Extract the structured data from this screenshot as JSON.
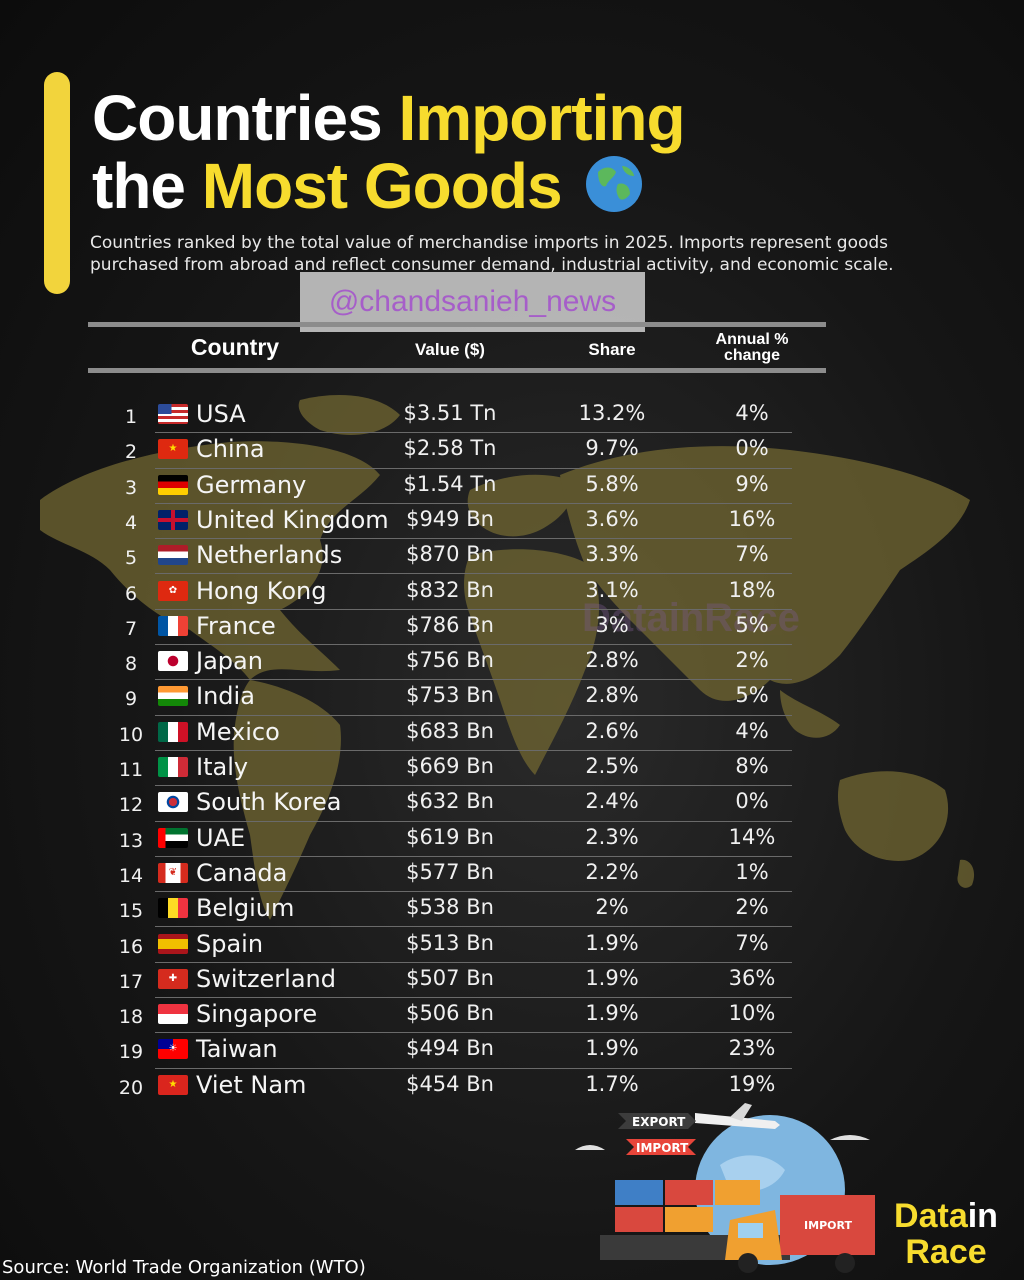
{
  "header": {
    "title_line1_a": "Countries",
    "title_line1_b": "Importing",
    "title_line2_a": "the",
    "title_line2_b": "Most Goods",
    "subtitle": "Countries ranked by the total value of merchandise imports in 2025.  Imports represent goods purchased from abroad and reflect consumer demand, industrial activity, and economic scale.",
    "globe_icon": "globe-icon"
  },
  "watermark": "@chandsanieh_news",
  "map_watermark": "DatainRace",
  "colors": {
    "accent": "#f2d43c",
    "title_yellow": "#f7dc2e",
    "map": "#6e6431",
    "background": "#161616"
  },
  "chart_data": {
    "type": "table",
    "columns": [
      "Country",
      "Value ($)",
      "Share",
      "Annual % change"
    ],
    "rows": [
      {
        "rank": "1",
        "flag": "us",
        "country": "USA",
        "value": "$3.51 Tn",
        "share": "13.2%",
        "change": "4%"
      },
      {
        "rank": "2",
        "flag": "cn",
        "country": "China",
        "value": "$2.58 Tn",
        "share": "9.7%",
        "change": "0%"
      },
      {
        "rank": "3",
        "flag": "de",
        "country": "Germany",
        "value": "$1.54 Tn",
        "share": "5.8%",
        "change": "9%"
      },
      {
        "rank": "4",
        "flag": "gb",
        "country": "United Kingdom",
        "value": "$949 Bn",
        "share": "3.6%",
        "change": "16%"
      },
      {
        "rank": "5",
        "flag": "nl",
        "country": "Netherlands",
        "value": "$870 Bn",
        "share": "3.3%",
        "change": "7%"
      },
      {
        "rank": "6",
        "flag": "hk",
        "country": "Hong Kong",
        "value": "$832 Bn",
        "share": "3.1%",
        "change": "18%"
      },
      {
        "rank": "7",
        "flag": "fr",
        "country": "France",
        "value": "$786 Bn",
        "share": "3%",
        "change": "5%"
      },
      {
        "rank": "8",
        "flag": "jp",
        "country": "Japan",
        "value": "$756 Bn",
        "share": "2.8%",
        "change": "2%"
      },
      {
        "rank": "9",
        "flag": "in",
        "country": "India",
        "value": "$753 Bn",
        "share": "2.8%",
        "change": "5%"
      },
      {
        "rank": "10",
        "flag": "mx",
        "country": "Mexico",
        "value": "$683 Bn",
        "share": "2.6%",
        "change": "4%"
      },
      {
        "rank": "11",
        "flag": "it",
        "country": "Italy",
        "value": "$669 Bn",
        "share": "2.5%",
        "change": "8%"
      },
      {
        "rank": "12",
        "flag": "kr",
        "country": "South Korea",
        "value": "$632 Bn",
        "share": "2.4%",
        "change": "0%"
      },
      {
        "rank": "13",
        "flag": "ae",
        "country": "UAE",
        "value": "$619 Bn",
        "share": "2.3%",
        "change": "14%"
      },
      {
        "rank": "14",
        "flag": "ca",
        "country": "Canada",
        "value": "$577 Bn",
        "share": "2.2%",
        "change": "1%"
      },
      {
        "rank": "15",
        "flag": "be",
        "country": "Belgium",
        "value": "$538 Bn",
        "share": "2%",
        "change": "2%"
      },
      {
        "rank": "16",
        "flag": "es",
        "country": "Spain",
        "value": "$513 Bn",
        "share": "1.9%",
        "change": "7%"
      },
      {
        "rank": "17",
        "flag": "ch",
        "country": "Switzerland",
        "value": "$507 Bn",
        "share": "1.9%",
        "change": "36%"
      },
      {
        "rank": "18",
        "flag": "sg",
        "country": "Singapore",
        "value": "$506 Bn",
        "share": "1.9%",
        "change": "10%"
      },
      {
        "rank": "19",
        "flag": "tw",
        "country": "Taiwan",
        "value": "$494 Bn",
        "share": "1.9%",
        "change": "23%"
      },
      {
        "rank": "20",
        "flag": "vn",
        "country": "Viet Nam",
        "value": "$454 Bn",
        "share": "1.7%",
        "change": "19%"
      }
    ]
  },
  "illustration": {
    "export_label": "EXPORT",
    "import_label": "IMPORT",
    "truck_label": "IMPORT"
  },
  "brand": {
    "part1": "Data",
    "part2": "in",
    "part3": "Race"
  },
  "source": "Source: World Trade Organization (WTO)"
}
